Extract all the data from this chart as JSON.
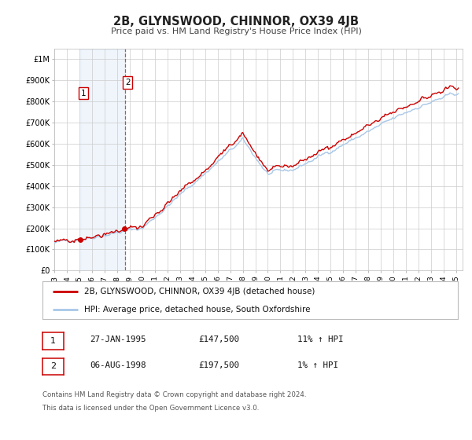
{
  "title": "2B, GLYNSWOOD, CHINNOR, OX39 4JB",
  "subtitle": "Price paid vs. HM Land Registry's House Price Index (HPI)",
  "background_color": "#ffffff",
  "plot_bg_color": "#ffffff",
  "grid_color": "#cccccc",
  "line1_color": "#cc0000",
  "line2_color": "#a8c8e8",
  "sale1_date_num": 1995.07,
  "sale1_price": 147500,
  "sale2_date_num": 1998.62,
  "sale2_price": 197500,
  "hatch_end": 1995.07,
  "shade_start": 1995.07,
  "shade_end": 1998.62,
  "ylim_max": 1050000,
  "yticks": [
    0,
    100000,
    200000,
    300000,
    400000,
    500000,
    600000,
    700000,
    800000,
    900000,
    1000000
  ],
  "ytick_labels": [
    "£0",
    "£100K",
    "£200K",
    "£300K",
    "£400K",
    "£500K",
    "£600K",
    "£700K",
    "£800K",
    "£900K",
    "£1M"
  ],
  "xtick_years": [
    1993,
    1994,
    1995,
    1996,
    1997,
    1998,
    1999,
    2000,
    2001,
    2002,
    2003,
    2004,
    2005,
    2006,
    2007,
    2008,
    2009,
    2010,
    2011,
    2012,
    2013,
    2014,
    2015,
    2016,
    2017,
    2018,
    2019,
    2020,
    2021,
    2022,
    2023,
    2024,
    2025
  ],
  "legend_line1": "2B, GLYNSWOOD, CHINNOR, OX39 4JB (detached house)",
  "legend_line2": "HPI: Average price, detached house, South Oxfordshire",
  "annotation1_label": "1",
  "annotation1_date": "27-JAN-1995",
  "annotation1_price": "£147,500",
  "annotation1_hpi": "11% ↑ HPI",
  "annotation2_label": "2",
  "annotation2_date": "06-AUG-1998",
  "annotation2_price": "£197,500",
  "annotation2_hpi": "1% ↑ HPI",
  "footer1": "Contains HM Land Registry data © Crown copyright and database right 2024.",
  "footer2": "This data is licensed under the Open Government Licence v3.0."
}
